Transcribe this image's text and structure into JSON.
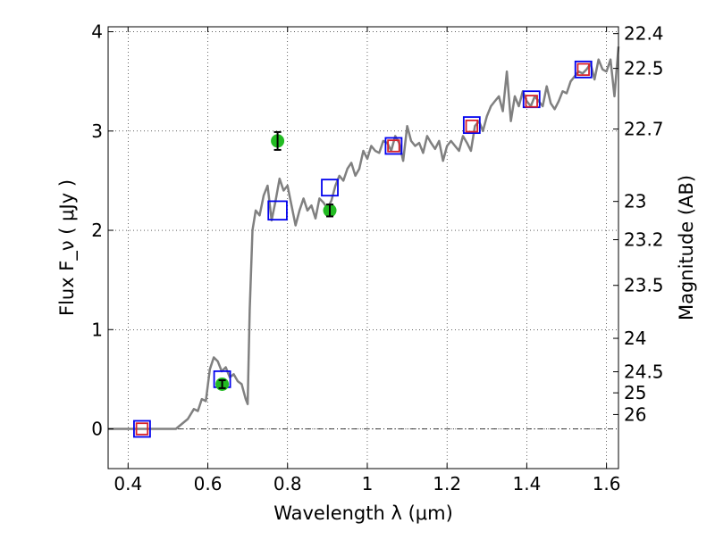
{
  "chart_data": {
    "type": "line",
    "title": "",
    "xlabel": "Wavelength  λ (μm)",
    "ylabel": "Flux  F_ν  ( μJy )",
    "y2label": "Magnitude (AB)",
    "xlim": [
      0.35,
      1.63
    ],
    "ylim": [
      -0.4,
      4.05
    ],
    "grid": true,
    "x_ticks": [
      {
        "value": 0.4,
        "label": "0.4"
      },
      {
        "value": 0.6,
        "label": "0.6"
      },
      {
        "value": 0.8,
        "label": "0.8"
      },
      {
        "value": 1.0,
        "label": "1"
      },
      {
        "value": 1.2,
        "label": "1.2"
      },
      {
        "value": 1.4,
        "label": "1.4"
      },
      {
        "value": 1.6,
        "label": "1.6"
      }
    ],
    "y_ticks": [
      {
        "value": 0,
        "label": "0"
      },
      {
        "value": 1,
        "label": "1"
      },
      {
        "value": 2,
        "label": "2"
      },
      {
        "value": 3,
        "label": "3"
      },
      {
        "value": 4,
        "label": "4"
      }
    ],
    "y2_ticks": [
      {
        "value": 22.4,
        "label": "22.4"
      },
      {
        "value": 22.5,
        "label": "22.5"
      },
      {
        "value": 22.7,
        "label": "22.7"
      },
      {
        "value": 23.0,
        "label": "23"
      },
      {
        "value": 23.2,
        "label": "23.2"
      },
      {
        "value": 23.5,
        "label": "23.5"
      },
      {
        "value": 24.0,
        "label": "24"
      },
      {
        "value": 24.5,
        "label": "24.5"
      },
      {
        "value": 25.0,
        "label": "25"
      },
      {
        "value": 26.0,
        "label": "26"
      }
    ],
    "series": [
      {
        "kind": "line",
        "color": "#808080",
        "x": [
          0.35,
          0.42,
          0.52,
          0.55,
          0.565,
          0.575,
          0.585,
          0.595,
          0.605,
          0.615,
          0.625,
          0.635,
          0.645,
          0.655,
          0.665,
          0.675,
          0.685,
          0.695,
          0.7,
          0.705,
          0.712,
          0.72,
          0.73,
          0.74,
          0.75,
          0.76,
          0.77,
          0.78,
          0.79,
          0.8,
          0.81,
          0.82,
          0.83,
          0.84,
          0.85,
          0.86,
          0.87,
          0.88,
          0.89,
          0.9,
          0.91,
          0.92,
          0.93,
          0.94,
          0.95,
          0.96,
          0.97,
          0.98,
          0.99,
          1.0,
          1.01,
          1.02,
          1.03,
          1.04,
          1.05,
          1.06,
          1.07,
          1.08,
          1.09,
          1.1,
          1.11,
          1.12,
          1.13,
          1.14,
          1.15,
          1.16,
          1.17,
          1.18,
          1.19,
          1.2,
          1.21,
          1.22,
          1.23,
          1.24,
          1.25,
          1.26,
          1.27,
          1.28,
          1.29,
          1.3,
          1.31,
          1.32,
          1.33,
          1.34,
          1.35,
          1.36,
          1.37,
          1.38,
          1.39,
          1.4,
          1.41,
          1.42,
          1.43,
          1.44,
          1.45,
          1.46,
          1.47,
          1.48,
          1.49,
          1.5,
          1.51,
          1.52,
          1.53,
          1.54,
          1.55,
          1.56,
          1.57,
          1.58,
          1.59,
          1.6,
          1.61,
          1.62,
          1.63
        ],
        "y": [
          0.0,
          0.0,
          0.0,
          0.1,
          0.2,
          0.18,
          0.3,
          0.28,
          0.6,
          0.72,
          0.68,
          0.58,
          0.62,
          0.52,
          0.55,
          0.48,
          0.45,
          0.3,
          0.25,
          1.2,
          2.0,
          2.2,
          2.15,
          2.35,
          2.45,
          2.1,
          2.3,
          2.52,
          2.4,
          2.45,
          2.25,
          2.05,
          2.2,
          2.32,
          2.2,
          2.25,
          2.12,
          2.32,
          2.28,
          2.22,
          2.3,
          2.45,
          2.55,
          2.5,
          2.62,
          2.68,
          2.55,
          2.62,
          2.8,
          2.72,
          2.85,
          2.8,
          2.78,
          2.9,
          2.88,
          2.8,
          2.95,
          2.88,
          2.7,
          3.05,
          2.9,
          2.85,
          2.88,
          2.78,
          2.95,
          2.88,
          2.82,
          2.9,
          2.7,
          2.85,
          2.9,
          2.85,
          2.8,
          2.95,
          2.88,
          2.8,
          3.05,
          3.1,
          3.0,
          3.15,
          3.25,
          3.3,
          3.35,
          3.2,
          3.6,
          3.1,
          3.35,
          3.25,
          3.4,
          3.3,
          3.25,
          3.35,
          3.3,
          3.25,
          3.45,
          3.28,
          3.22,
          3.3,
          3.4,
          3.38,
          3.5,
          3.55,
          3.6,
          3.58,
          3.62,
          3.68,
          3.52,
          3.72,
          3.62,
          3.6,
          3.72,
          3.35,
          3.85
        ]
      },
      {
        "kind": "scatter",
        "marker": "square",
        "color": "#0000ee",
        "x": [
          0.435,
          0.636,
          0.775,
          0.906,
          1.066,
          1.262,
          1.412,
          1.542
        ],
        "y": [
          0.0,
          0.5,
          2.2,
          2.43,
          2.85,
          3.06,
          3.32,
          3.62
        ],
        "size_scale": [
          1,
          1,
          1.15,
          1,
          1,
          1,
          1,
          1
        ]
      },
      {
        "kind": "scatter",
        "marker": "square",
        "color": "#d8222a",
        "x": [
          0.435,
          1.066,
          1.262,
          1.412,
          1.542
        ],
        "y": [
          0.0,
          2.85,
          3.05,
          3.3,
          3.62
        ],
        "size_scale": [
          0.7,
          0.7,
          0.7,
          0.7,
          0.7
        ]
      },
      {
        "kind": "scatter",
        "marker": "circle",
        "color": "#22bb22",
        "x": [
          0.636,
          0.775,
          0.906
        ],
        "y": [
          0.45,
          2.9,
          2.2
        ],
        "yerr": [
          0.04,
          0.09,
          0.06
        ]
      }
    ]
  }
}
